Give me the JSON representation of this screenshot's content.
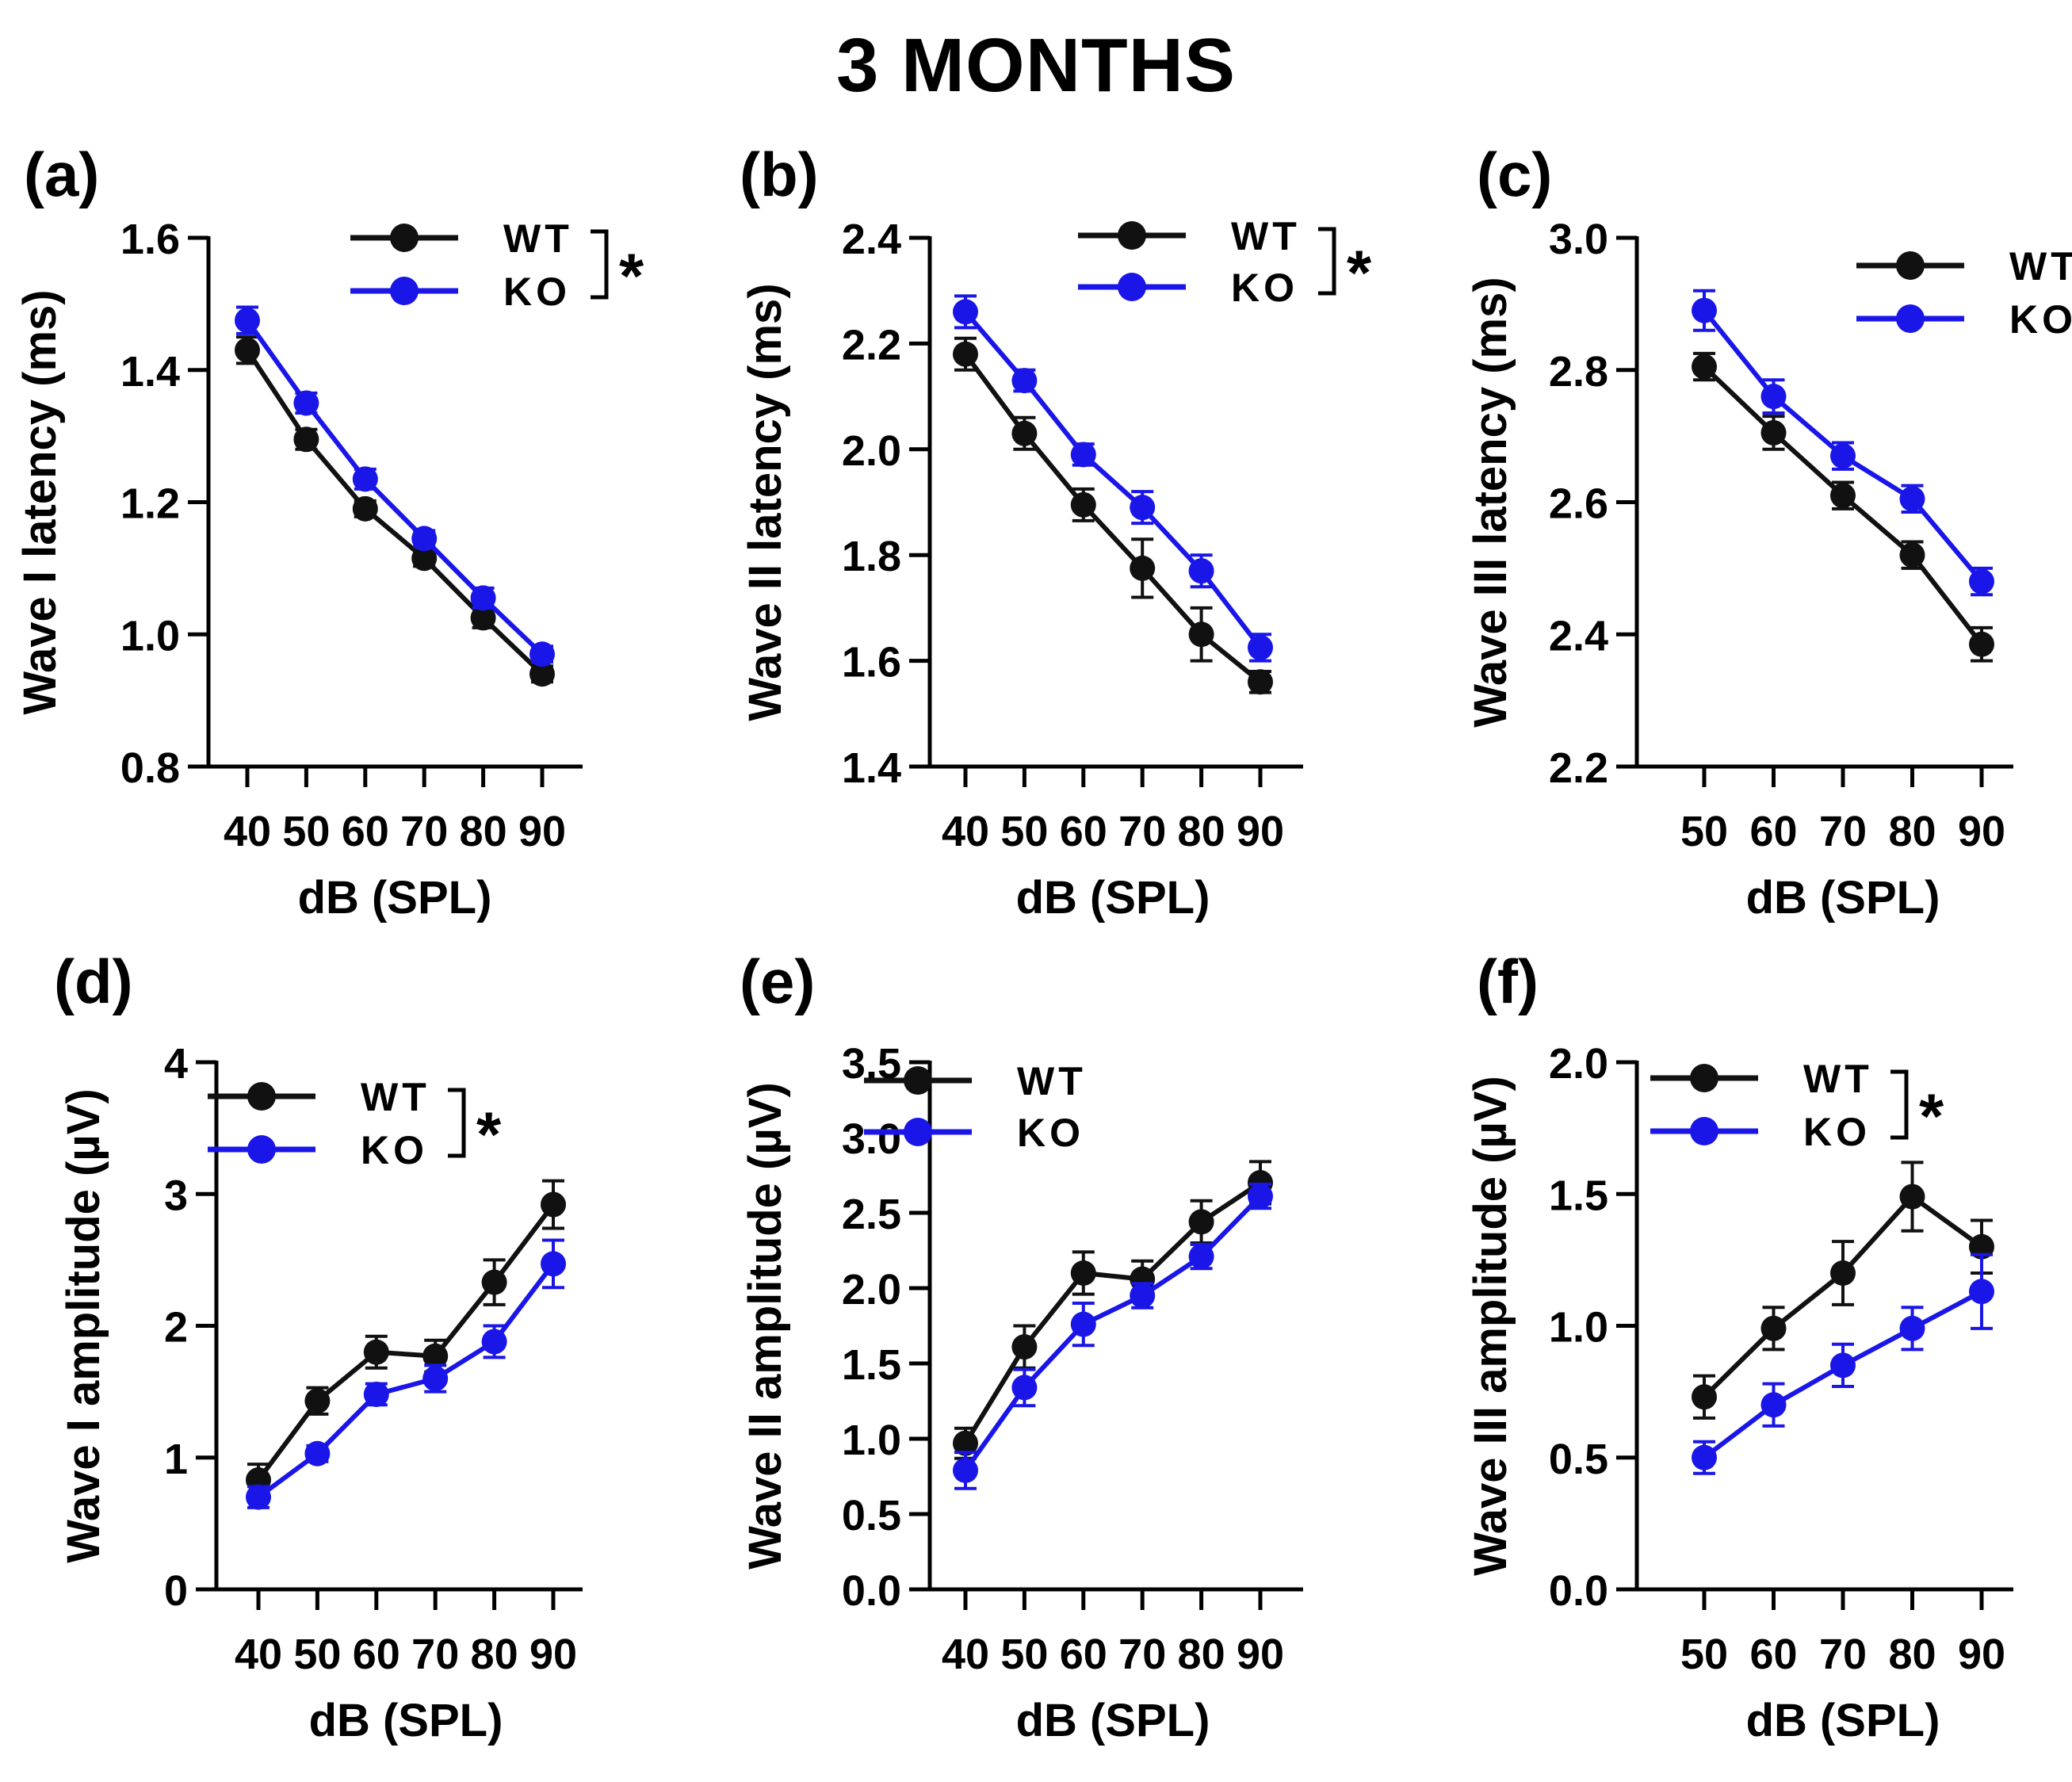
{
  "title": "3 MONTHS",
  "colors": {
    "WT": "#111111",
    "KO": "#1a16e8"
  },
  "chart_data": [
    {
      "panel": "(a)",
      "type": "line",
      "ylabel": "Wave I latency (ms)",
      "xlabel": "dB (SPL)",
      "ylim": [
        0.8,
        1.6
      ],
      "yticks": [
        0.8,
        1.0,
        1.2,
        1.4,
        1.6
      ],
      "yticklabels": [
        "0.8",
        "1.0",
        "1.2",
        "1.4",
        "1.6"
      ],
      "x": [
        40,
        50,
        60,
        70,
        80,
        90
      ],
      "xticklabels": [
        "40",
        "50",
        "60",
        "70",
        "80",
        "90"
      ],
      "series": [
        {
          "name": "WT",
          "values": [
            1.43,
            1.295,
            1.19,
            1.115,
            1.025,
            0.94
          ],
          "errors": [
            0.02,
            0.015,
            0.012,
            0.012,
            0.015,
            0.012
          ]
        },
        {
          "name": "KO",
          "values": [
            1.475,
            1.35,
            1.235,
            1.145,
            1.055,
            0.97
          ],
          "errors": [
            0.02,
            0.015,
            0.015,
            0.012,
            0.015,
            0.012
          ]
        }
      ],
      "legend_position": "top-right",
      "significance": "*"
    },
    {
      "panel": "(b)",
      "type": "line",
      "ylabel": "Wave II latency (ms)",
      "xlabel": "dB (SPL)",
      "ylim": [
        1.4,
        2.4
      ],
      "yticks": [
        1.4,
        1.6,
        1.8,
        2.0,
        2.2,
        2.4
      ],
      "yticklabels": [
        "1.4",
        "1.6",
        "1.8",
        "2.0",
        "2.2",
        "2.4"
      ],
      "x": [
        40,
        50,
        60,
        70,
        80,
        90
      ],
      "xticklabels": [
        "40",
        "50",
        "60",
        "70",
        "80",
        "90"
      ],
      "series": [
        {
          "name": "WT",
          "values": [
            2.18,
            2.03,
            1.895,
            1.775,
            1.65,
            1.56
          ],
          "errors": [
            0.03,
            0.03,
            0.03,
            0.055,
            0.05,
            0.02
          ]
        },
        {
          "name": "KO",
          "values": [
            2.26,
            2.13,
            1.99,
            1.89,
            1.77,
            1.625
          ],
          "errors": [
            0.03,
            0.02,
            0.02,
            0.03,
            0.03,
            0.025
          ]
        }
      ],
      "legend_position": "top-right",
      "significance": "*"
    },
    {
      "panel": "(c)",
      "type": "line",
      "ylabel": "Wave III latency (ms)",
      "xlabel": "dB (SPL)",
      "ylim": [
        2.2,
        3.0
      ],
      "yticks": [
        2.2,
        2.4,
        2.6,
        2.8,
        3.0
      ],
      "yticklabels": [
        "2.2",
        "2.4",
        "2.6",
        "2.8",
        "3.0"
      ],
      "x": [
        50,
        60,
        70,
        80,
        90
      ],
      "xticklabels": [
        "50",
        "60",
        "70",
        "80",
        "90"
      ],
      "series": [
        {
          "name": "WT",
          "values": [
            2.805,
            2.705,
            2.61,
            2.52,
            2.385
          ],
          "errors": [
            0.02,
            0.025,
            0.02,
            0.02,
            0.025
          ]
        },
        {
          "name": "KO",
          "values": [
            2.89,
            2.76,
            2.67,
            2.605,
            2.48
          ],
          "errors": [
            0.03,
            0.025,
            0.02,
            0.02,
            0.02
          ]
        }
      ],
      "legend_position": "top-right",
      "significance": ""
    },
    {
      "panel": "(d)",
      "type": "line",
      "ylabel": "Wave I amplitude (µV)",
      "xlabel": "dB (SPL)",
      "ylim": [
        0,
        4
      ],
      "yticks": [
        0,
        1,
        2,
        3,
        4
      ],
      "yticklabels": [
        "0",
        "1",
        "2",
        "3",
        "4"
      ],
      "x": [
        40,
        50,
        60,
        70,
        80,
        90
      ],
      "xticklabels": [
        "40",
        "50",
        "60",
        "70",
        "80",
        "90"
      ],
      "series": [
        {
          "name": "WT",
          "values": [
            0.83,
            1.43,
            1.8,
            1.77,
            2.33,
            2.92
          ],
          "errors": [
            0.12,
            0.1,
            0.12,
            0.12,
            0.17,
            0.18
          ]
        },
        {
          "name": "KO",
          "values": [
            0.7,
            1.03,
            1.48,
            1.6,
            1.88,
            2.47
          ],
          "errors": [
            0.08,
            0.06,
            0.08,
            0.1,
            0.12,
            0.18
          ]
        }
      ],
      "legend_position": "top-left",
      "significance": "*"
    },
    {
      "panel": "(e)",
      "type": "line",
      "ylabel": "Wave II amplitude (µV)",
      "xlabel": "dB (SPL)",
      "ylim": [
        0,
        3.5
      ],
      "yticks": [
        0,
        0.5,
        1.0,
        1.5,
        2.0,
        2.5,
        3.0,
        3.5
      ],
      "yticklabels": [
        "0.0",
        "0.5",
        "1.0",
        "1.5",
        "2.0",
        "2.5",
        "3.0",
        "3.5"
      ],
      "x": [
        40,
        50,
        60,
        70,
        80,
        90
      ],
      "xticklabels": [
        "40",
        "50",
        "60",
        "70",
        "80",
        "90"
      ],
      "series": [
        {
          "name": "WT",
          "values": [
            0.97,
            1.61,
            2.1,
            2.06,
            2.44,
            2.7
          ],
          "errors": [
            0.1,
            0.14,
            0.14,
            0.12,
            0.14,
            0.14
          ]
        },
        {
          "name": "KO",
          "values": [
            0.79,
            1.34,
            1.76,
            1.95,
            2.21,
            2.61
          ],
          "errors": [
            0.12,
            0.12,
            0.14,
            0.08,
            0.08,
            0.08
          ]
        }
      ],
      "legend_position": "top-left",
      "significance": ""
    },
    {
      "panel": "(f)",
      "type": "line",
      "ylabel": "Wave III amplitude (µV)",
      "xlabel": "dB (SPL)",
      "ylim": [
        0,
        2.0
      ],
      "yticks": [
        0,
        0.5,
        1.0,
        1.5,
        2.0
      ],
      "yticklabels": [
        "0.0",
        "0.5",
        "1.0",
        "1.5",
        "2.0"
      ],
      "x": [
        50,
        60,
        70,
        80,
        90
      ],
      "xticklabels": [
        "50",
        "60",
        "70",
        "80",
        "90"
      ],
      "series": [
        {
          "name": "WT",
          "values": [
            0.73,
            0.99,
            1.2,
            1.49,
            1.3
          ],
          "errors": [
            0.08,
            0.08,
            0.12,
            0.13,
            0.1
          ]
        },
        {
          "name": "KO",
          "values": [
            0.5,
            0.7,
            0.85,
            0.99,
            1.13
          ],
          "errors": [
            0.06,
            0.08,
            0.08,
            0.08,
            0.14
          ]
        }
      ],
      "legend_position": "top-left",
      "significance": "*"
    }
  ]
}
